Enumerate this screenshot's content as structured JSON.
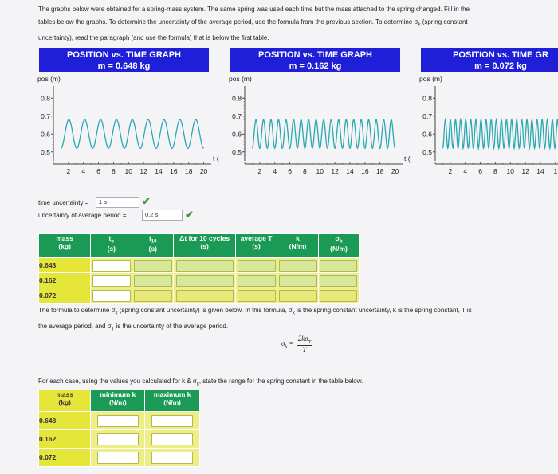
{
  "intro": {
    "line1": "The graphs below were obtained for a spring-mass system. The same spring was used each time but the mass attached to the spring changed. Fill in the",
    "line2": "tables below the graphs. To determine the uncertainty of the average period, use the formula from the previous section. To determine σ",
    "line2_sub": "k",
    "line2_end": " (spring constant",
    "line3": "uncertainty), read the paragraph (and use the formula) that is below the first table."
  },
  "graphs": [
    {
      "title": "POSITION vs. TIME GRAPH",
      "mass_label": "m = 0.648 kg"
    },
    {
      "title": "POSITION vs. TIME GRAPH",
      "mass_label": "m = 0.162 kg"
    },
    {
      "title": "POSITION vs. TIME GR",
      "mass_label": "m = 0.072 kg"
    }
  ],
  "axis": {
    "ylabel": "pos (m)",
    "xlabel": "t (s)",
    "yticks": [
      "0.8",
      "0.7",
      "0.6",
      "0.5"
    ],
    "xticks": [
      "2",
      "4",
      "6",
      "8",
      "10",
      "12",
      "14",
      "16",
      "18",
      "20"
    ],
    "xticks_partial": [
      "2",
      "4",
      "6",
      "8",
      "10",
      "12",
      "14",
      "1"
    ]
  },
  "uncertainty": {
    "time_label": "time uncertainty =",
    "time_value": "1 s",
    "period_label": "uncertainty of average period =",
    "period_value": "0.2 s"
  },
  "table1": {
    "headers": [
      "mass\n(kg)",
      "t₀\n(s)",
      "t₁₀\n(s)",
      "Δt for 10 cycles\n(s)",
      "average T\n(s)",
      "k\n(N/m)",
      "σk\n(N/m)"
    ],
    "h_mass": "mass",
    "h_mass_u": "(kg)",
    "h_t0": "t",
    "h_t0_sub": "o",
    "h_t0_u": "(s)",
    "h_t10": "t",
    "h_t10_sub": "10",
    "h_t10_u": "(s)",
    "h_dt": "Δt for 10 cycles",
    "h_dt_u": "(s)",
    "h_avg": "average T",
    "h_avg_u": "(s)",
    "h_k": "k",
    "h_k_u": "(N/m)",
    "h_sk": "σ",
    "h_sk_sub": "k",
    "h_sk_u": "(N/m)",
    "rows": [
      "0.648",
      "0.162",
      "0.072"
    ]
  },
  "formula": {
    "line1_a": "The formula to determine σ",
    "line1_sub": "k",
    "line1_b": " (spring constant uncertainty) is given below. In this formula, σ",
    "line1_sub2": "k",
    "line1_c": " is the spring constant uncertainty, k is the spring constant, T is",
    "line2_a": "the average period, and σ",
    "line2_sub": "T",
    "line2_b": " is the uncertainty of the average period.",
    "lhs": "σ",
    "lhs_sub": "k",
    "numerator": "2kσ",
    "numerator_sub": "T",
    "denominator": "T"
  },
  "case": {
    "text_a": "For each case, using the values you calculated for k & σ",
    "text_sub": "k",
    "text_b": ", state the range for the spring constant in the table below."
  },
  "table2": {
    "h_mass": "mass",
    "h_mass_u": "(kg)",
    "h_min": "minimum k",
    "h_min_u": "(N/m)",
    "h_max": "maximum k",
    "h_max_u": "(N/m)",
    "rows": [
      "0.648",
      "0.162",
      "0.072"
    ]
  },
  "colors": {
    "graph_header": "#1f1fd8",
    "wave": "#2aa8b0",
    "table_header": "#1b9a55",
    "mass_cell": "#f0d22a",
    "check": "#3a9a3a"
  }
}
